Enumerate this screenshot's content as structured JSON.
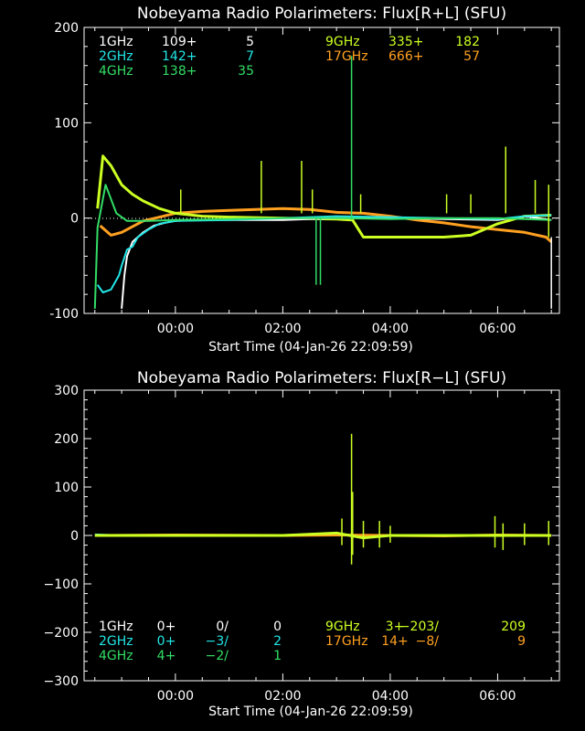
{
  "colors": {
    "bg": "#000000",
    "axis": "#ffffff",
    "c1": "#ffffff",
    "c2": "#22e6e6",
    "c4": "#33dd66",
    "c9": "#ccff22",
    "c17": "#ffa020"
  },
  "chart_data": [
    {
      "type": "line",
      "title": "Nobeyama Radio Polarimeters: Flux[R+L] (SFU)",
      "xlabel": "Start Time (04-Jan-26 22:09:59)",
      "x_tick_labels": [
        "00:00",
        "02:00",
        "04:00",
        "06:00"
      ],
      "x_ticks_hours": [
        0,
        2,
        4,
        6
      ],
      "xlim_hours": [
        -1.7,
        7.15
      ],
      "ylim": [
        -100,
        200
      ],
      "y_ticks": [
        -100,
        0,
        100,
        200
      ],
      "y_tick_labels": [
        "-100",
        "0",
        "100",
        "200"
      ],
      "legend": [
        {
          "freq": "1GHz",
          "v1": "109+",
          "v2": "5",
          "color": "#ffffff"
        },
        {
          "freq": "2GHz",
          "v1": "142+",
          "v2": "7",
          "color": "#22e6e6"
        },
        {
          "freq": "4GHz",
          "v1": "138+",
          "v2": "35",
          "color": "#33dd66"
        },
        {
          "freq": "9GHz",
          "v1": "335+",
          "v2": "182",
          "color": "#ccff22"
        },
        {
          "freq": "17GHz",
          "v1": "666+",
          "v2": "57",
          "color": "#ffa020"
        }
      ],
      "series": [
        {
          "name": "17GHz",
          "color": "#ffa020",
          "x": [
            -1.4,
            -1.2,
            -1.0,
            -0.6,
            0,
            0.5,
            1.0,
            1.5,
            2.0,
            2.5,
            3.0,
            3.5,
            4.0,
            4.5,
            5.0,
            5.5,
            6.0,
            6.5,
            6.9,
            7.0
          ],
          "y": [
            -8,
            -18,
            -15,
            -3,
            5,
            7,
            8,
            9,
            10,
            9,
            6,
            5,
            2,
            -2,
            -5,
            -9,
            -12,
            -15,
            -20,
            -25
          ]
        },
        {
          "name": "9GHz",
          "color": "#ccff22",
          "x": [
            -1.45,
            -1.35,
            -1.2,
            -1.0,
            -0.8,
            -0.6,
            -0.3,
            0,
            0.5,
            1,
            2,
            3,
            3.3,
            3.5,
            4,
            5,
            5.5,
            6,
            6.5,
            7.0
          ],
          "y": [
            10,
            65,
            55,
            35,
            25,
            18,
            10,
            5,
            2,
            1,
            0,
            -1,
            -2,
            -20,
            -20,
            -20,
            -18,
            -6,
            2,
            3
          ]
        },
        {
          "name": "1GHz",
          "color": "#ffffff",
          "x": [
            -1.0,
            -0.95,
            -0.9,
            -0.8,
            -0.6,
            -0.4,
            -0.2,
            0,
            0.5,
            1,
            2,
            3,
            4,
            5,
            6,
            6.5,
            7.0
          ],
          "y": [
            -95,
            -60,
            -40,
            -25,
            -15,
            -8,
            -5,
            -3,
            -2,
            -2,
            -2,
            0,
            0,
            -1,
            -2,
            2,
            -2
          ]
        },
        {
          "name": "2GHz",
          "color": "#22e6e6",
          "x": [
            -1.45,
            -1.35,
            -1.2,
            -1.05,
            -1.0,
            -0.9,
            -0.8,
            -0.7,
            -0.5,
            -0.3,
            0,
            1,
            2,
            3,
            4,
            5,
            6,
            6.5,
            7.0
          ],
          "y": [
            -70,
            -78,
            -75,
            -60,
            -50,
            -33,
            -30,
            -20,
            -12,
            -6,
            -3,
            -2,
            0,
            2,
            1,
            0,
            -1,
            2,
            3
          ]
        },
        {
          "name": "4GHz",
          "color": "#33dd66",
          "x": [
            -1.5,
            -1.45,
            -1.3,
            -1.1,
            -0.9,
            -0.5,
            0,
            1,
            2,
            3,
            4,
            5,
            6,
            6.5,
            7.0
          ],
          "y": [
            -95,
            -10,
            35,
            5,
            -3,
            -3,
            -2,
            -1,
            0,
            0,
            -1,
            0,
            0,
            -1,
            -2
          ]
        }
      ],
      "spikes": [
        {
          "x": 3.28,
          "y0": -2,
          "y1": 170,
          "color": "#33dd66"
        },
        {
          "x": 2.62,
          "y0": 0,
          "y1": -70,
          "color": "#33dd66"
        },
        {
          "x": 2.7,
          "y0": 0,
          "y1": -70,
          "color": "#33dd66"
        },
        {
          "x": 0.1,
          "y0": 5,
          "y1": 30,
          "color": "#ccff22"
        },
        {
          "x": 1.6,
          "y0": 5,
          "y1": 60,
          "color": "#ccff22"
        },
        {
          "x": 2.35,
          "y0": 5,
          "y1": 60,
          "color": "#ccff22"
        },
        {
          "x": 2.55,
          "y0": 5,
          "y1": 30,
          "color": "#ccff22"
        },
        {
          "x": 3.45,
          "y0": 5,
          "y1": 25,
          "color": "#ccff22"
        },
        {
          "x": 5.05,
          "y0": 5,
          "y1": 25,
          "color": "#ccff22"
        },
        {
          "x": 5.5,
          "y0": 5,
          "y1": 25,
          "color": "#ccff22"
        },
        {
          "x": 6.15,
          "y0": 5,
          "y1": 75,
          "color": "#ccff22"
        },
        {
          "x": 6.7,
          "y0": 5,
          "y1": 40,
          "color": "#ccff22"
        },
        {
          "x": 6.95,
          "y0": -20,
          "y1": 35,
          "color": "#ccff22"
        },
        {
          "x": 7.0,
          "y0": -20,
          "y1": -95,
          "color": "#ffffff"
        }
      ]
    },
    {
      "type": "line",
      "title": "Nobeyama Radio Polarimeters: Flux[R−L] (SFU)",
      "xlabel": "Start Time (04-Jan-26 22:09:59)",
      "x_tick_labels": [
        "00:00",
        "02:00",
        "04:00",
        "06:00"
      ],
      "x_ticks_hours": [
        0,
        2,
        4,
        6
      ],
      "xlim_hours": [
        -1.7,
        7.15
      ],
      "ylim": [
        -300,
        300
      ],
      "y_ticks": [
        -300,
        -200,
        -100,
        0,
        100,
        200,
        300
      ],
      "y_tick_labels": [
        "−300",
        "−200",
        "−100",
        "0",
        "100",
        "200",
        "300"
      ],
      "legend": [
        {
          "freq": "1GHz",
          "v1": "0+",
          "v2": "0/",
          "v3": "0",
          "color": "#ffffff"
        },
        {
          "freq": "2GHz",
          "v1": "0+",
          "v2": "−3/",
          "v3": "2",
          "color": "#22e6e6"
        },
        {
          "freq": "4GHz",
          "v1": "4+",
          "v2": "−2/",
          "v3": "1",
          "color": "#33dd66"
        },
        {
          "freq": "9GHz",
          "v1": "3+",
          "v2": "−203/",
          "v3": "209",
          "color": "#ccff22"
        },
        {
          "freq": "17GHz",
          "v1": "14+",
          "v2": "−8/",
          "v3": "9",
          "color": "#ffa020"
        }
      ],
      "series": [
        {
          "name": "2GHz",
          "color": "#22e6e6",
          "x": [
            -1.5,
            -1.0,
            -0.5,
            0,
            7.0
          ],
          "y": [
            2,
            0,
            0,
            0,
            0
          ]
        },
        {
          "name": "17GHz",
          "color": "#ffa020",
          "x": [
            -1.5,
            0,
            2,
            3,
            4,
            5,
            6,
            7.0
          ],
          "y": [
            0,
            1,
            0,
            1,
            0,
            -1,
            1,
            0
          ]
        },
        {
          "name": "9GHz",
          "color": "#ccff22",
          "x": [
            -1.5,
            0,
            2,
            3,
            3.5,
            4,
            5,
            6,
            7.0
          ],
          "y": [
            0,
            0,
            0,
            5,
            -5,
            0,
            0,
            0,
            0
          ]
        }
      ],
      "spikes": [
        {
          "x": 3.28,
          "y0": -60,
          "y1": 210,
          "color": "#ccff22"
        },
        {
          "x": 3.3,
          "y0": -40,
          "y1": 90,
          "color": "#ccff22"
        },
        {
          "x": 3.1,
          "y0": -20,
          "y1": 35,
          "color": "#ccff22"
        },
        {
          "x": 3.5,
          "y0": -25,
          "y1": 30,
          "color": "#ccff22"
        },
        {
          "x": 3.8,
          "y0": -25,
          "y1": 30,
          "color": "#ccff22"
        },
        {
          "x": 4.0,
          "y0": -15,
          "y1": 20,
          "color": "#ccff22"
        },
        {
          "x": 5.95,
          "y0": -25,
          "y1": 40,
          "color": "#ccff22"
        },
        {
          "x": 6.1,
          "y0": -30,
          "y1": 25,
          "color": "#ccff22"
        },
        {
          "x": 6.5,
          "y0": -20,
          "y1": 25,
          "color": "#ccff22"
        },
        {
          "x": 6.95,
          "y0": -20,
          "y1": 30,
          "color": "#ccff22"
        }
      ]
    }
  ]
}
